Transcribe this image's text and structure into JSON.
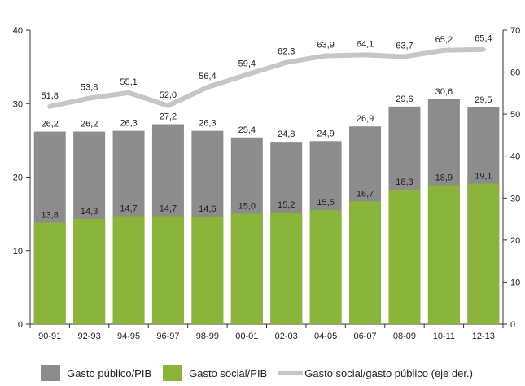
{
  "chart_data": {
    "type": "bar",
    "categories": [
      "90-91",
      "92-93",
      "94-95",
      "96-97",
      "98-99",
      "00-01",
      "02-03",
      "04-05",
      "06-07",
      "08-09",
      "10-11",
      "12-13"
    ],
    "series": [
      {
        "name": "Gasto público/PIB",
        "kind": "bar",
        "axis": "left",
        "color": "#8c8c8c",
        "values": [
          26.2,
          26.2,
          26.3,
          27.2,
          26.3,
          25.4,
          24.8,
          24.9,
          26.9,
          29.6,
          30.6,
          29.5
        ],
        "labels": [
          "26,2",
          "26,2",
          "26,3",
          "27,2",
          "26,3",
          "25,4",
          "24,8",
          "24,9",
          "26,9",
          "29,6",
          "30,6",
          "29,5"
        ]
      },
      {
        "name": "Gasto social/PIB",
        "kind": "bar",
        "axis": "left",
        "color": "#8ab43a",
        "values": [
          13.8,
          14.3,
          14.7,
          14.7,
          14.6,
          15.0,
          15.2,
          15.5,
          16.7,
          18.3,
          18.9,
          19.1
        ],
        "labels": [
          "13,8",
          "14,3",
          "14,7",
          "14,7",
          "14,6",
          "15,0",
          "15,2",
          "15,5",
          "16,7",
          "18,3",
          "18,9",
          "19,1"
        ]
      },
      {
        "name": "Gasto social/gasto público (eje der.)",
        "kind": "line",
        "axis": "right",
        "color": "#c6c6c6",
        "values": [
          51.8,
          53.8,
          55.1,
          52.0,
          56.4,
          59.4,
          62.3,
          63.9,
          64.1,
          63.7,
          65.2,
          65.4
        ],
        "labels": [
          "51,8",
          "53,8",
          "55,1",
          "52,0",
          "56,4",
          "59,4",
          "62,3",
          "63,9",
          "64,1",
          "63,7",
          "65,2",
          "65,4"
        ]
      }
    ],
    "y_left": {
      "lim": [
        0,
        40
      ],
      "ticks": [
        "0",
        "10",
        "20",
        "30",
        "40"
      ]
    },
    "y_right": {
      "lim": [
        0,
        70
      ],
      "ticks": [
        "0",
        "10",
        "20",
        "30",
        "40",
        "50",
        "60",
        "70"
      ]
    },
    "grid": false,
    "legend_position": "bottom"
  }
}
